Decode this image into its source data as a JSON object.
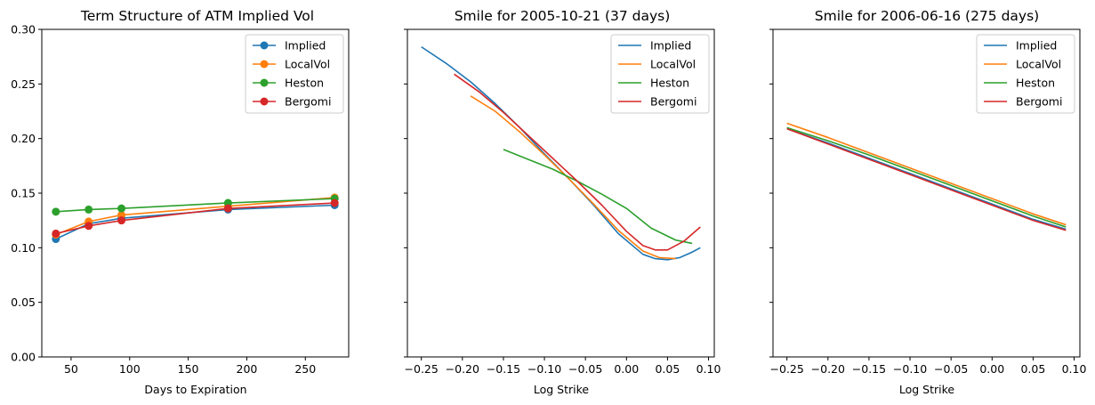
{
  "colors": {
    "Implied": "#1f77b4",
    "LocalVol": "#ff7f0e",
    "Heston": "#2ca02c",
    "Bergomi": "#d62728"
  },
  "chart_data": [
    {
      "type": "line",
      "title": "Term Structure of ATM Implied Vol",
      "xlabel": "Days to Expiration",
      "ylabel": "",
      "markers": true,
      "xlim": [
        25,
        287
      ],
      "ylim": [
        0,
        0.3
      ],
      "xticks": [
        50,
        100,
        150,
        200,
        250
      ],
      "xtick_labels": [
        "50",
        "100",
        "150",
        "200",
        "250"
      ],
      "yticks": [
        0,
        0.05,
        0.1,
        0.15,
        0.2,
        0.25,
        0.3
      ],
      "ytick_labels": [
        "0.00",
        "0.05",
        "0.10",
        "0.15",
        "0.20",
        "0.25",
        "0.30"
      ],
      "legend": "top-right",
      "x": [
        37,
        65,
        93,
        184,
        275
      ],
      "series": [
        {
          "name": "Implied",
          "values": [
            0.108,
            0.122,
            0.127,
            0.135,
            0.139
          ]
        },
        {
          "name": "LocalVol",
          "values": [
            0.112,
            0.124,
            0.13,
            0.138,
            0.146
          ]
        },
        {
          "name": "Heston",
          "values": [
            0.133,
            0.135,
            0.136,
            0.141,
            0.145
          ]
        },
        {
          "name": "Bergomi",
          "values": [
            0.113,
            0.12,
            0.125,
            0.136,
            0.141
          ]
        }
      ]
    },
    {
      "type": "line",
      "title": "Smile for 2005-10-21 (37 days)",
      "xlabel": "Log Strike",
      "ylabel": "",
      "xlim": [
        -0.267,
        0.107
      ],
      "ylim": [
        0,
        0.3
      ],
      "xticks": [
        -0.25,
        -0.2,
        -0.15,
        -0.1,
        -0.05,
        0.0,
        0.05,
        0.1
      ],
      "xtick_labels": [
        "−0.25",
        "−0.20",
        "−0.15",
        "−0.10",
        "−0.05",
        "0.00",
        "0.05",
        "0.10"
      ],
      "yticks": [
        0,
        0.05,
        0.1,
        0.15,
        0.2,
        0.25,
        0.3
      ],
      "legend": "top-right",
      "series": [
        {
          "name": "Implied",
          "x": [
            -0.25,
            -0.22,
            -0.19,
            -0.16,
            -0.13,
            -0.1,
            -0.07,
            -0.04,
            -0.01,
            0.02,
            0.035,
            0.05,
            0.065,
            0.08,
            0.09
          ],
          "values": [
            0.284,
            0.269,
            0.252,
            0.232,
            0.21,
            0.186,
            0.163,
            0.139,
            0.113,
            0.094,
            0.09,
            0.089,
            0.091,
            0.096,
            0.1
          ]
        },
        {
          "name": "LocalVol",
          "x": [
            -0.19,
            -0.16,
            -0.13,
            -0.1,
            -0.07,
            -0.04,
            -0.01,
            0.02,
            0.04,
            0.06
          ],
          "values": [
            0.239,
            0.225,
            0.206,
            0.185,
            0.163,
            0.14,
            0.116,
            0.097,
            0.091,
            0.09
          ]
        },
        {
          "name": "Heston",
          "x": [
            -0.15,
            -0.12,
            -0.09,
            -0.06,
            -0.03,
            0.0,
            0.03,
            0.06,
            0.08
          ],
          "values": [
            0.19,
            0.181,
            0.172,
            0.161,
            0.149,
            0.136,
            0.118,
            0.107,
            0.104
          ]
        },
        {
          "name": "Bergomi",
          "x": [
            -0.21,
            -0.18,
            -0.15,
            -0.12,
            -0.09,
            -0.06,
            -0.03,
            0.0,
            0.02,
            0.035,
            0.05,
            0.07,
            0.09
          ],
          "values": [
            0.259,
            0.243,
            0.224,
            0.203,
            0.182,
            0.161,
            0.139,
            0.115,
            0.102,
            0.098,
            0.098,
            0.106,
            0.119
          ]
        }
      ]
    },
    {
      "type": "line",
      "title": "Smile for 2006-06-16 (275 days)",
      "xlabel": "Log Strike",
      "ylabel": "",
      "xlim": [
        -0.267,
        0.107
      ],
      "ylim": [
        0,
        0.3
      ],
      "xticks": [
        -0.25,
        -0.2,
        -0.15,
        -0.1,
        -0.05,
        0.0,
        0.05,
        0.1
      ],
      "xtick_labels": [
        "−0.25",
        "−0.20",
        "−0.15",
        "−0.10",
        "−0.05",
        "0.00",
        "0.05",
        "0.10"
      ],
      "yticks": [
        0,
        0.05,
        0.1,
        0.15,
        0.2,
        0.25,
        0.3
      ],
      "legend": "top-right",
      "series": [
        {
          "name": "Implied",
          "x": [
            -0.25,
            -0.2,
            -0.15,
            -0.1,
            -0.05,
            0.0,
            0.05,
            0.09
          ],
          "values": [
            0.209,
            0.196,
            0.182,
            0.168,
            0.154,
            0.14,
            0.126,
            0.117
          ]
        },
        {
          "name": "LocalVol",
          "x": [
            -0.25,
            -0.2,
            -0.15,
            -0.1,
            -0.05,
            0.0,
            0.05,
            0.09
          ],
          "values": [
            0.214,
            0.201,
            0.187,
            0.173,
            0.159,
            0.145,
            0.131,
            0.121
          ]
        },
        {
          "name": "Heston",
          "x": [
            -0.25,
            -0.2,
            -0.15,
            -0.1,
            -0.05,
            0.0,
            0.05,
            0.09
          ],
          "values": [
            0.21,
            0.198,
            0.185,
            0.171,
            0.157,
            0.143,
            0.129,
            0.119
          ]
        },
        {
          "name": "Bergomi",
          "x": [
            -0.25,
            -0.2,
            -0.15,
            -0.1,
            -0.05,
            0.0,
            0.05,
            0.09
          ],
          "values": [
            0.209,
            0.195,
            0.181,
            0.167,
            0.153,
            0.139,
            0.125,
            0.116
          ]
        }
      ]
    }
  ]
}
